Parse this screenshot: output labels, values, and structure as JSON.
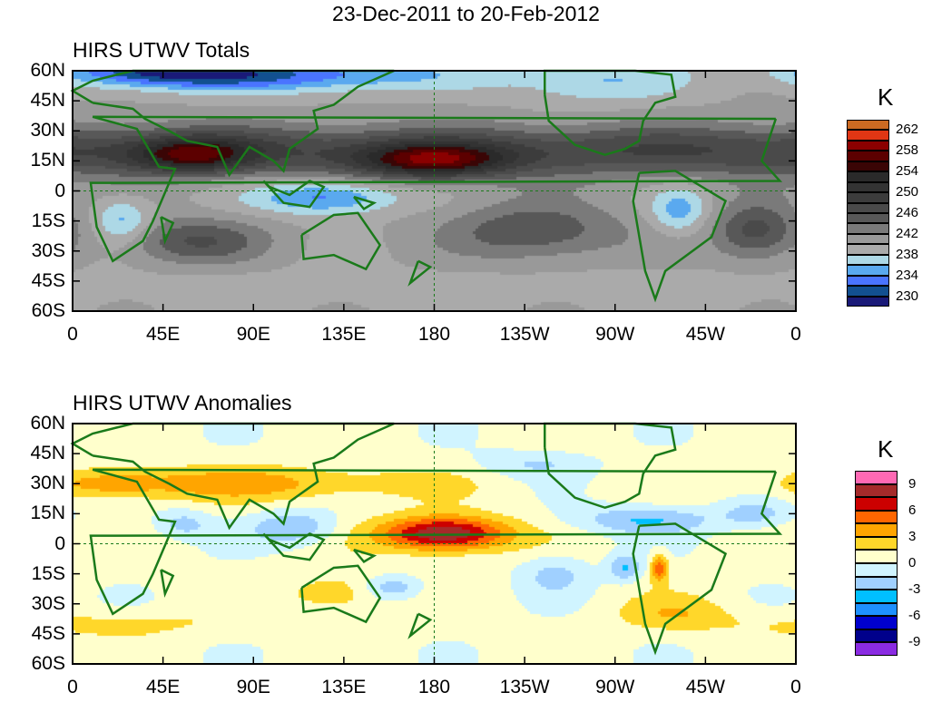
{
  "title": "23-Dec-2011 to 20-Feb-2012",
  "chart_data": [
    {
      "type": "heatmap",
      "title": "HIRS UTWV Totals",
      "units": "K",
      "lat_ticks": [
        "60N",
        "45N",
        "30N",
        "15N",
        "0",
        "15S",
        "30S",
        "45S",
        "60S"
      ],
      "lon_ticks": [
        "0",
        "45E",
        "90E",
        "135E",
        "180",
        "135W",
        "90W",
        "45W",
        "0"
      ],
      "lat_range": [
        -60,
        60
      ],
      "lon_range": [
        0,
        360
      ],
      "levels": [
        230,
        232,
        234,
        236,
        238,
        240,
        242,
        244,
        246,
        248,
        250,
        252,
        254,
        256,
        258,
        260,
        262
      ],
      "colorbar_labels": [
        "262",
        "258",
        "254",
        "250",
        "246",
        "242",
        "238",
        "234",
        "230"
      ],
      "colors": [
        "#1a1a78",
        "#125090",
        "#4a74ff",
        "#5aa9ef",
        "#add8e6",
        "#aaaaaa",
        "#999999",
        "#7a7a7a",
        "#585858",
        "#4a4a4a",
        "#3c3c3c",
        "#333333",
        "#2a2a2a",
        "#3a0505",
        "#5c0000",
        "#8b0000",
        "#e03614",
        "#cc6a22"
      ],
      "base": 240,
      "features": [
        {
          "lon": 0,
          "lat": 20,
          "slon": 400,
          "slat": 9,
          "amp": 8
        },
        {
          "lon": 180,
          "lat": 15,
          "slon": 25,
          "slat": 6,
          "amp": 13
        },
        {
          "lon": 60,
          "lat": 18,
          "slon": 20,
          "slat": 6,
          "amp": 10
        },
        {
          "lon": 100,
          "lat": 58,
          "slon": 60,
          "slat": 6,
          "amp": -8
        },
        {
          "lon": 40,
          "lat": 60,
          "slon": 30,
          "slat": 5,
          "amp": -7
        },
        {
          "lon": 125,
          "lat": -3,
          "slon": 25,
          "slat": 6,
          "amp": -7
        },
        {
          "lon": 25,
          "lat": -15,
          "slon": 10,
          "slat": 8,
          "amp": -5
        },
        {
          "lon": 302,
          "lat": -10,
          "slon": 10,
          "slat": 8,
          "amp": -5
        },
        {
          "lon": 230,
          "lat": -20,
          "slon": 30,
          "slat": 10,
          "amp": 6
        },
        {
          "lon": 340,
          "lat": -20,
          "slon": 15,
          "slat": 10,
          "amp": 7
        },
        {
          "lon": 60,
          "lat": -25,
          "slon": 25,
          "slat": 8,
          "amp": 6
        },
        {
          "lon": 180,
          "lat": -50,
          "slon": 400,
          "slat": 8,
          "amp": -1
        },
        {
          "lon": 260,
          "lat": 55,
          "slon": 30,
          "slat": 8,
          "amp": -4
        }
      ]
    },
    {
      "type": "heatmap",
      "title": "HIRS UTWV Anomalies",
      "units": "K",
      "lat_ticks": [
        "60N",
        "45N",
        "30N",
        "15N",
        "0",
        "15S",
        "30S",
        "45S",
        "60S"
      ],
      "lon_ticks": [
        "0",
        "45E",
        "90E",
        "135E",
        "180",
        "135W",
        "90W",
        "45W",
        "0"
      ],
      "lat_range": [
        -60,
        60
      ],
      "lon_range": [
        0,
        360
      ],
      "levels": [
        -9,
        -7.5,
        -6,
        -4.5,
        -3,
        -1.5,
        0,
        1.5,
        3,
        4.5,
        6,
        7.5,
        9
      ],
      "colorbar_labels": [
        "9",
        "6",
        "3",
        "0",
        "-3",
        "-6",
        "-9"
      ],
      "colors": [
        "#8a2be2",
        "#00008b",
        "#0000cd",
        "#1e90ff",
        "#00bfff",
        "#a0d0ff",
        "#d0f4ff",
        "#ffffcc",
        "#ffd72a",
        "#ffa500",
        "#ff6600",
        "#cc0000",
        "#a52a2a",
        "#ff69b4"
      ],
      "base": 0.5,
      "features": [
        {
          "lon": 185,
          "lat": 5,
          "slon": 22,
          "slat": 6,
          "amp": 9
        },
        {
          "lon": 90,
          "lat": 30,
          "slon": 60,
          "slat": 6,
          "amp": 3
        },
        {
          "lon": 20,
          "lat": 30,
          "slon": 20,
          "slat": 5,
          "amp": 2.5
        },
        {
          "lon": 110,
          "lat": 8,
          "slon": 15,
          "slat": 6,
          "amp": -3.5
        },
        {
          "lon": 55,
          "lat": 10,
          "slon": 10,
          "slat": 5,
          "amp": -2.5
        },
        {
          "lon": 285,
          "lat": 12,
          "slon": 25,
          "slat": 5,
          "amp": -3.5
        },
        {
          "lon": 340,
          "lat": 15,
          "slon": 12,
          "slat": 5,
          "amp": -2.5
        },
        {
          "lon": 240,
          "lat": -15,
          "slon": 12,
          "slat": 7,
          "amp": -2.5
        },
        {
          "lon": 275,
          "lat": -12,
          "slon": 6,
          "slat": 5,
          "amp": -3.5
        },
        {
          "lon": 292,
          "lat": -12,
          "slon": 3,
          "slat": 5,
          "amp": 5
        },
        {
          "lon": 160,
          "lat": -22,
          "slon": 10,
          "slat": 4,
          "amp": -3
        },
        {
          "lon": 130,
          "lat": -25,
          "slon": 15,
          "slat": 6,
          "amp": 2.5
        },
        {
          "lon": 300,
          "lat": -35,
          "slon": 20,
          "slat": 6,
          "amp": 2
        },
        {
          "lon": 20,
          "lat": -40,
          "slon": 40,
          "slat": 5,
          "amp": 1.5
        },
        {
          "lon": 230,
          "lat": 40,
          "slon": 20,
          "slat": 5,
          "amp": -2
        }
      ]
    }
  ]
}
